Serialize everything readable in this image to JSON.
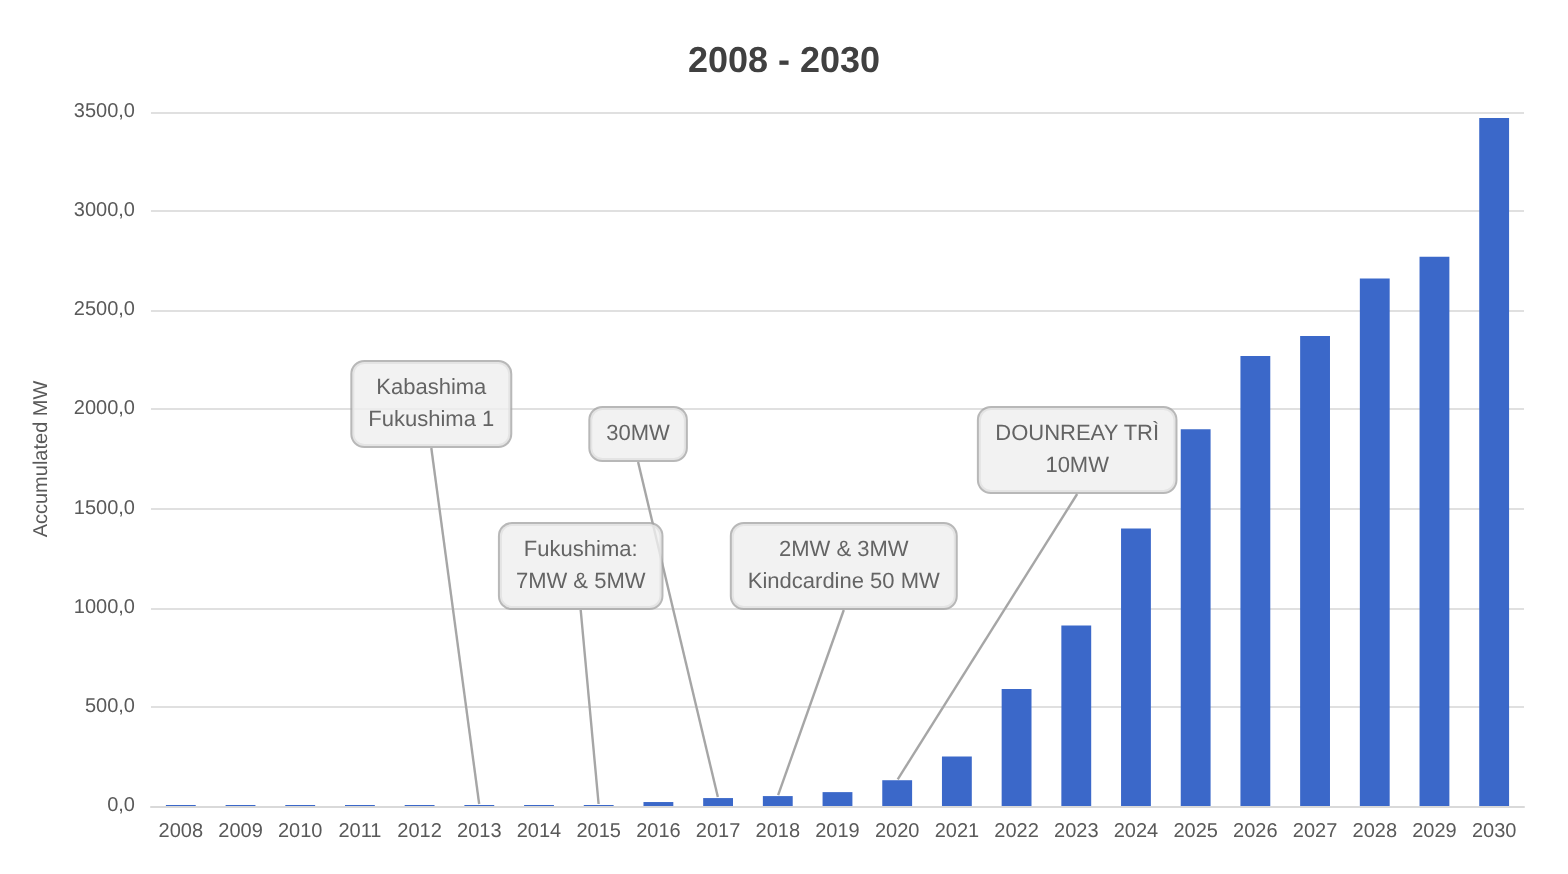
{
  "chart_data": {
    "type": "bar",
    "title": "2008 - 2030",
    "ylabel": "Accumulated MW",
    "categories": [
      "2008",
      "2009",
      "2010",
      "2011",
      "2012",
      "2013",
      "2014",
      "2015",
      "2016",
      "2017",
      "2018",
      "2019",
      "2020",
      "2021",
      "2022",
      "2023",
      "2024",
      "2025",
      "2026",
      "2027",
      "2028",
      "2029",
      "2030"
    ],
    "values": [
      5,
      5,
      5,
      5,
      5,
      5,
      5,
      5,
      20,
      40,
      50,
      70,
      130,
      250,
      590,
      910,
      1400,
      1900,
      2270,
      2370,
      2660,
      2770,
      3470
    ],
    "color": "#3b68c9",
    "ylim": [
      0,
      3500
    ],
    "yticks": [
      {
        "value": 0,
        "label": "0,0"
      },
      {
        "value": 500,
        "label": "500,0"
      },
      {
        "value": 1000,
        "label": "1000,0"
      },
      {
        "value": 1500,
        "label": "1500,0"
      },
      {
        "value": 2000,
        "label": "2000,0"
      },
      {
        "value": 2500,
        "label": "2500,0"
      },
      {
        "value": 3000,
        "label": "3000,0"
      },
      {
        "value": 3500,
        "label": "3500,0"
      }
    ],
    "grid": "y",
    "annotations": [
      {
        "text": "Kabashima\nFukushima 1",
        "x": "2013",
        "y": 5
      },
      {
        "text": "Fukushima:\n7MW & 5MW",
        "x": "2015",
        "y": 5
      },
      {
        "text": "30MW",
        "x": "2017",
        "y": 40
      },
      {
        "text": "2MW & 3MW\nKindcardine 50 MW",
        "x": "2018",
        "y": 50
      },
      {
        "text": "DOUNREAY TRÌ\n10MW",
        "x": "2020",
        "y": 130
      }
    ]
  }
}
